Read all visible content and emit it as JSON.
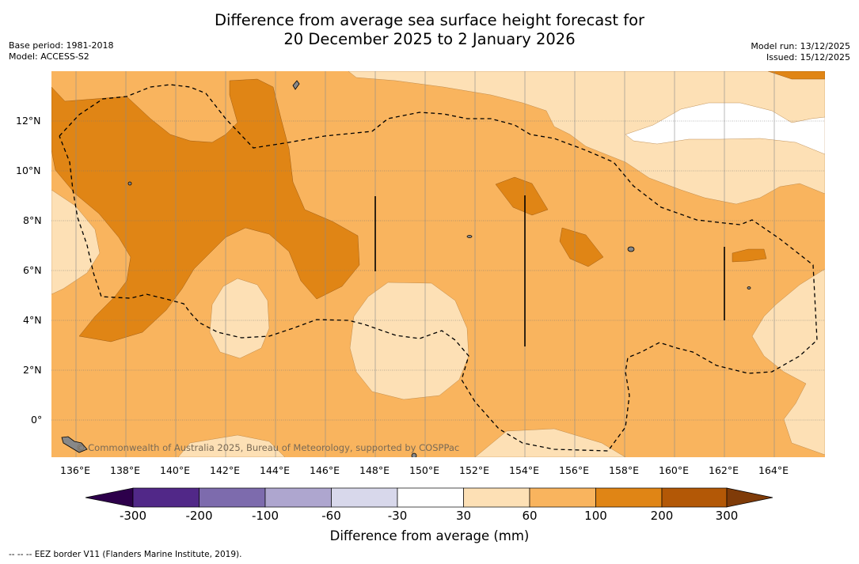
{
  "title": {
    "line1": "Difference from average sea surface height forecast for",
    "line2": "20 December 2025 to 2 January 2026"
  },
  "meta_left": {
    "base_period": "Base period: 1981-2018",
    "model": "Model: ACCESS-S2"
  },
  "meta_right": {
    "model_run": "Model run: 13/12/2025",
    "issued": "Issued: 15/12/2025"
  },
  "map": {
    "lat_labels": [
      "12°N",
      "10°N",
      "8°N",
      "6°N",
      "4°N",
      "2°N",
      "0°"
    ],
    "lon_labels": [
      "136°E",
      "138°E",
      "140°E",
      "142°E",
      "144°E",
      "146°E",
      "148°E",
      "150°E",
      "152°E",
      "154°E",
      "156°E",
      "158°E",
      "160°E",
      "162°E",
      "164°E"
    ],
    "credit": "© Commonwealth of Australia 2025, Bureau of Meteorology, supported by COSPPac"
  },
  "colorbar": {
    "ticks": [
      "-300",
      "-200",
      "-100",
      "-60",
      "-30",
      "30",
      "60",
      "100",
      "200",
      "300"
    ],
    "colors": [
      "#512888",
      "#7d6bad",
      "#aea6cf",
      "#d8d8eb",
      "#ffffff",
      "#fde0b5",
      "#f9b45e",
      "#e08515",
      "#b35806"
    ],
    "under_color": "#2d004b",
    "over_color": "#7f3b08",
    "label": "Difference from average (mm)"
  },
  "footnote": "--  --  -- EEZ border V11 (Flanders Marine Institute, 2019)."
}
